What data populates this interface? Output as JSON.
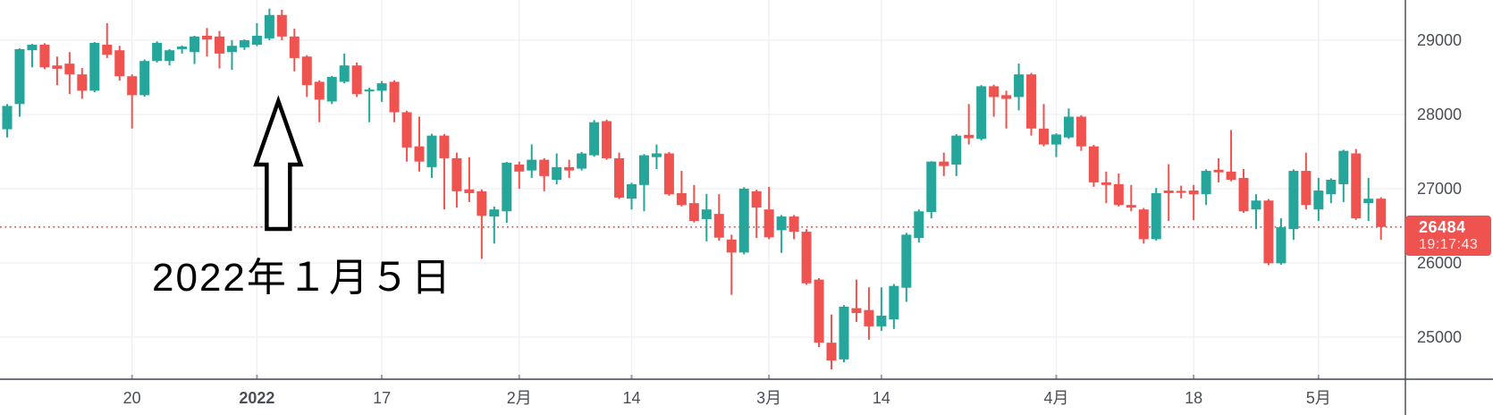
{
  "chart_data": {
    "type": "candlestick",
    "title": "",
    "grid": true,
    "y_axis": {
      "side": "right",
      "visible_range": [
        24434,
        29542
      ],
      "ticks": [
        {
          "label": "29000",
          "value": 29000
        },
        {
          "label": "28000",
          "value": 28000
        },
        {
          "label": "27000",
          "value": 27000
        },
        {
          "label": "26000",
          "value": 26000
        },
        {
          "label": "25000",
          "value": 25000
        }
      ]
    },
    "x_axis": {
      "ticks": [
        {
          "label": "20",
          "candle_index": 10,
          "bold": false
        },
        {
          "label": "2022",
          "candle_index": 20,
          "bold": true
        },
        {
          "label": "17",
          "candle_index": 30,
          "bold": false
        },
        {
          "label": "2月",
          "candle_index": 41,
          "bold": false
        },
        {
          "label": "14",
          "candle_index": 50,
          "bold": false
        },
        {
          "label": "3月",
          "candle_index": 61,
          "bold": false
        },
        {
          "label": "14",
          "candle_index": 70,
          "bold": false
        },
        {
          "label": "4月",
          "candle_index": 84,
          "bold": false
        },
        {
          "label": "18",
          "candle_index": 95,
          "bold": false
        },
        {
          "label": "5月",
          "candle_index": 105,
          "bold": false
        }
      ]
    },
    "last_price": {
      "price": "26484",
      "time": "19:17:43"
    },
    "price_line": {
      "value": 26484,
      "style": "dotted"
    },
    "annotation": {
      "text": "2022年１月５日",
      "shape": "up-arrow",
      "target_candle_index": 22
    },
    "colors": {
      "up": "#26a69a",
      "down": "#ef5350",
      "grid": "#edf0f5",
      "axis_line": "#434651",
      "axis_text": "#4a4e58",
      "dotted_line": "#e8544e",
      "badge_bg": "#ef5350",
      "badge_text": "#ffffff",
      "annotation_color": "#000000",
      "background": "#ffffff"
    },
    "candles_ohlc": [
      [
        27800,
        28140,
        27690,
        28115
      ],
      [
        28140,
        28890,
        27970,
        28880
      ],
      [
        28865,
        28950,
        28635,
        28940
      ],
      [
        28940,
        28960,
        28610,
        28635
      ],
      [
        28660,
        28780,
        28395,
        28615
      ],
      [
        28685,
        28840,
        28275,
        28540
      ],
      [
        28540,
        28625,
        28210,
        28320
      ],
      [
        28320,
        28975,
        28300,
        28965
      ],
      [
        28940,
        29230,
        28760,
        28805
      ],
      [
        28865,
        28925,
        28455,
        28515
      ],
      [
        28515,
        28540,
        27810,
        28260
      ],
      [
        28260,
        28740,
        28240,
        28720
      ],
      [
        28720,
        28985,
        28700,
        28965
      ],
      [
        28720,
        28880,
        28660,
        28865
      ],
      [
        28880,
        28930,
        28820,
        28915
      ],
      [
        28840,
        29060,
        28680,
        29050
      ],
      [
        29060,
        29165,
        28780,
        29010
      ],
      [
        29050,
        29125,
        28620,
        28820
      ],
      [
        28840,
        29000,
        28600,
        28925
      ],
      [
        28905,
        29010,
        28870,
        29000
      ],
      [
        28940,
        29230,
        28920,
        29060
      ],
      [
        29025,
        29425,
        29000,
        29340
      ],
      [
        29340,
        29410,
        29000,
        29050
      ],
      [
        29050,
        29155,
        28580,
        28760
      ],
      [
        28780,
        28800,
        28235,
        28395
      ],
      [
        28440,
        28460,
        27895,
        28200
      ],
      [
        28175,
        28520,
        28140,
        28505
      ],
      [
        28440,
        28820,
        28420,
        28660
      ],
      [
        28660,
        28700,
        28235,
        28275
      ],
      [
        28310,
        28360,
        27895,
        28335
      ],
      [
        28320,
        28450,
        28170,
        28420
      ],
      [
        28440,
        28460,
        27895,
        28030
      ],
      [
        28030,
        28050,
        27365,
        27555
      ],
      [
        27570,
        27970,
        27230,
        27365
      ],
      [
        27290,
        27740,
        27145,
        27715
      ],
      [
        27715,
        27735,
        26720,
        27410
      ],
      [
        27410,
        27485,
        26745,
        26965
      ],
      [
        26990,
        27425,
        26820,
        26940
      ],
      [
        26965,
        26990,
        26055,
        26635
      ],
      [
        26625,
        26760,
        26260,
        26720
      ],
      [
        26695,
        27360,
        26540,
        27350
      ],
      [
        27325,
        27365,
        27000,
        27230
      ],
      [
        27245,
        27595,
        27145,
        27390
      ],
      [
        27390,
        27410,
        26965,
        27170
      ],
      [
        27120,
        27475,
        27060,
        27290
      ],
      [
        27290,
        27390,
        27145,
        27245
      ],
      [
        27270,
        27495,
        27245,
        27475
      ],
      [
        27450,
        27925,
        27430,
        27895
      ],
      [
        27910,
        27930,
        27390,
        27410
      ],
      [
        27410,
        27485,
        26860,
        26880
      ],
      [
        26865,
        27080,
        26720,
        27060
      ],
      [
        27050,
        27465,
        26695,
        27450
      ],
      [
        27425,
        27595,
        27265,
        27475
      ],
      [
        27475,
        27495,
        26905,
        26925
      ],
      [
        26940,
        27240,
        26760,
        26780
      ],
      [
        26805,
        27050,
        26545,
        26565
      ],
      [
        26590,
        26930,
        26290,
        26720
      ],
      [
        26660,
        26925,
        26300,
        26340
      ],
      [
        26315,
        26380,
        25570,
        26140
      ],
      [
        26140,
        27020,
        26115,
        27000
      ],
      [
        26965,
        26985,
        26335,
        26745
      ],
      [
        26720,
        27025,
        26320,
        26345
      ],
      [
        26440,
        26645,
        26135,
        26625
      ],
      [
        26625,
        26645,
        26320,
        26420
      ],
      [
        26420,
        26455,
        25705,
        25725
      ],
      [
        25775,
        25795,
        24865,
        24925
      ],
      [
        24925,
        25305,
        24565,
        24685
      ],
      [
        24700,
        25430,
        24660,
        25410
      ],
      [
        25390,
        25775,
        25205,
        25325
      ],
      [
        25365,
        25670,
        24965,
        25145
      ],
      [
        25145,
        25670,
        25085,
        25290
      ],
      [
        25240,
        25715,
        25110,
        25690
      ],
      [
        25665,
        26405,
        25475,
        26380
      ],
      [
        26335,
        26720,
        26275,
        26695
      ],
      [
        26685,
        27370,
        26600,
        27365
      ],
      [
        27365,
        27485,
        27170,
        27305
      ],
      [
        27325,
        27735,
        27170,
        27715
      ],
      [
        27725,
        28140,
        27595,
        27680
      ],
      [
        27670,
        28395,
        27650,
        28380
      ],
      [
        28380,
        28400,
        27970,
        28235
      ],
      [
        28260,
        28320,
        27810,
        28210
      ],
      [
        28235,
        28685,
        28055,
        28540
      ],
      [
        28540,
        28560,
        27715,
        27810
      ],
      [
        27810,
        28140,
        27570,
        27595
      ],
      [
        27595,
        27745,
        27425,
        27730
      ],
      [
        27690,
        28080,
        27670,
        27970
      ],
      [
        27970,
        27990,
        27510,
        27570
      ],
      [
        27570,
        27590,
        27025,
        27085
      ],
      [
        27085,
        27230,
        26805,
        27050
      ],
      [
        27060,
        27205,
        26760,
        26780
      ],
      [
        26780,
        27050,
        26695,
        26745
      ],
      [
        26720,
        26740,
        26260,
        26320
      ],
      [
        26320,
        27010,
        26300,
        26940
      ],
      [
        26975,
        27330,
        26565,
        26940
      ],
      [
        26970,
        27040,
        26870,
        26945
      ],
      [
        26975,
        27050,
        26575,
        26925
      ],
      [
        26925,
        27260,
        26780,
        27240
      ],
      [
        27255,
        27410,
        27085,
        27220
      ],
      [
        27230,
        27790,
        27100,
        27120
      ],
      [
        27145,
        27265,
        26675,
        26695
      ],
      [
        26720,
        26925,
        26455,
        26840
      ],
      [
        26840,
        26860,
        25970,
        25995
      ],
      [
        25995,
        26600,
        25975,
        26480
      ],
      [
        26455,
        27260,
        26310,
        27240
      ],
      [
        27240,
        27485,
        26720,
        26780
      ],
      [
        26720,
        27145,
        26565,
        26975
      ],
      [
        26925,
        27140,
        26805,
        27120
      ],
      [
        27060,
        27525,
        26820,
        27510
      ],
      [
        27475,
        27535,
        26580,
        26600
      ],
      [
        26805,
        27145,
        26565,
        26865
      ],
      [
        26865,
        26885,
        26310,
        26484
      ]
    ]
  }
}
